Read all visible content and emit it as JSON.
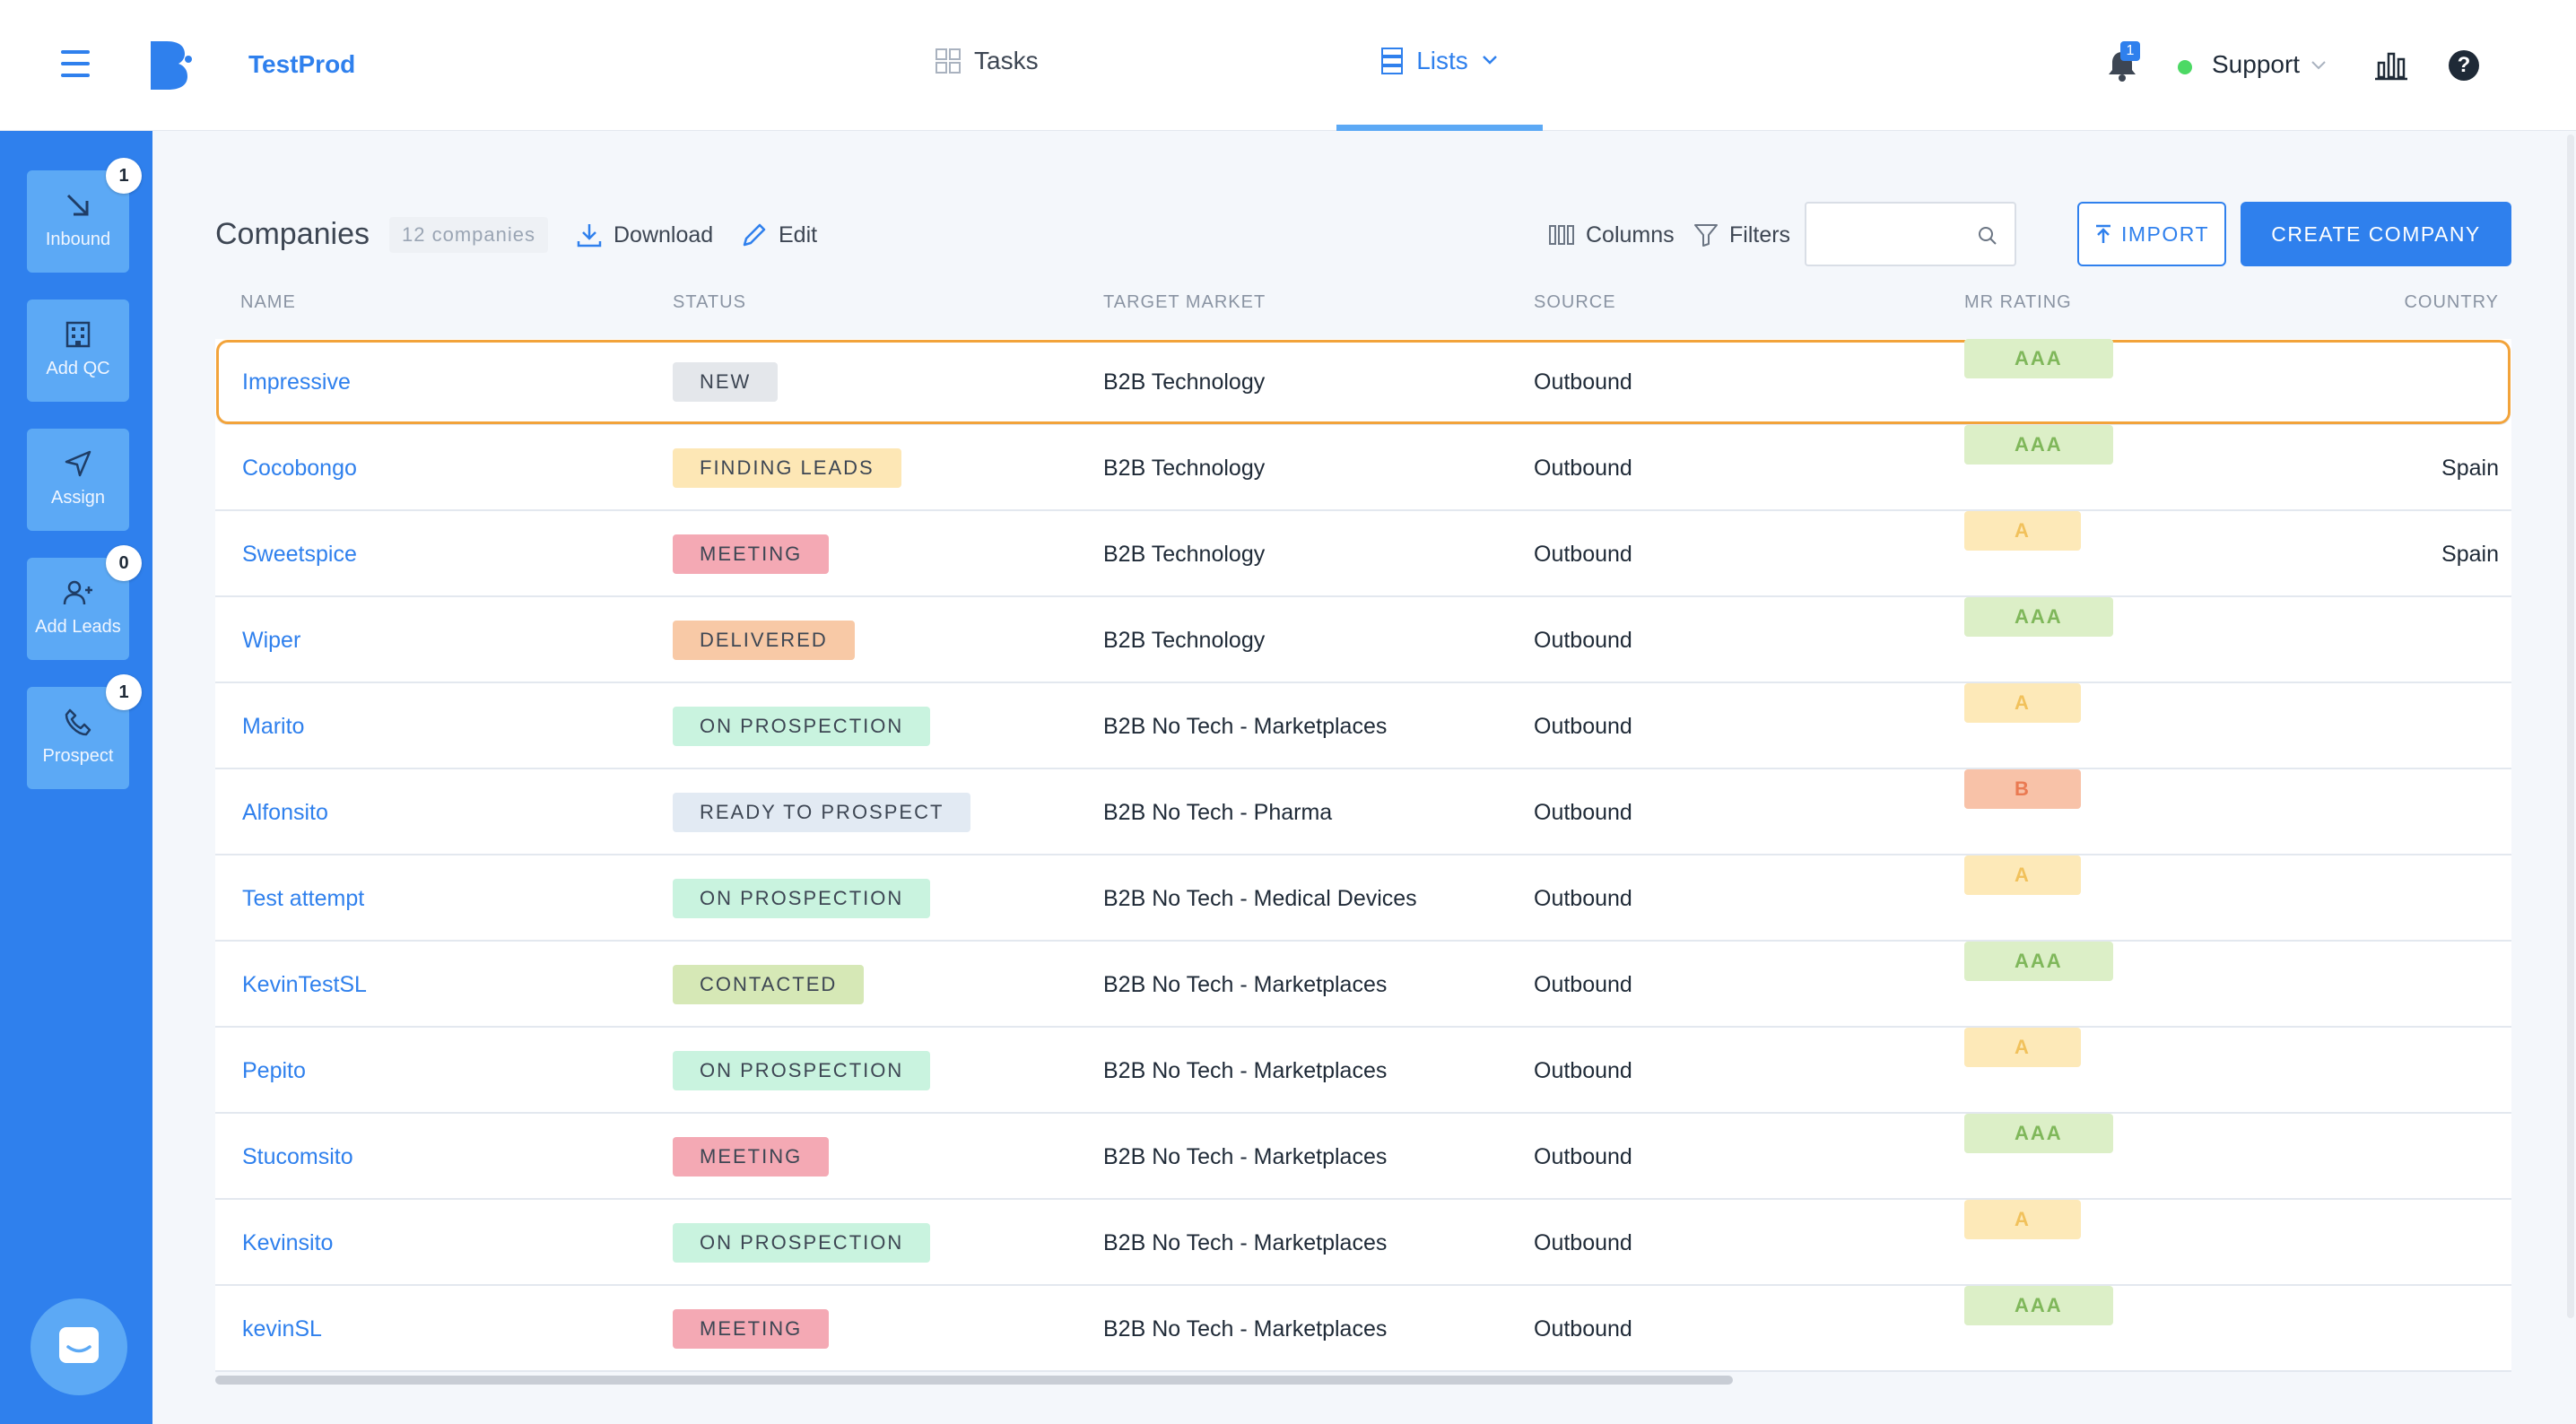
{
  "header": {
    "brand": "TestProd",
    "nav": {
      "tasks_label": "Tasks",
      "lists_label": "Lists"
    },
    "notification_count": "1",
    "user_label": "Support",
    "icons": [
      "menu-icon",
      "logo",
      "grid-icon",
      "list-icon",
      "chevron-down-icon",
      "bell-icon",
      "stats-icon",
      "help-icon"
    ]
  },
  "sidebar": {
    "items": [
      {
        "label": "Inbound",
        "badge": "1",
        "icon": "arrow-down-right-icon"
      },
      {
        "label": "Add QC",
        "badge": null,
        "icon": "building-icon"
      },
      {
        "label": "Assign",
        "badge": null,
        "icon": "send-icon"
      },
      {
        "label": "Add Leads",
        "badge": "0",
        "icon": "add-user-icon"
      },
      {
        "label": "Prospect",
        "badge": "1",
        "icon": "phone-icon"
      }
    ],
    "chat_icon": "chat-icon"
  },
  "main": {
    "title": "Companies",
    "count": "12 companies",
    "download_label": "Download",
    "edit_label": "Edit",
    "columns_label": "Columns",
    "filters_label": "Filters",
    "search_value": "",
    "import_label": "IMPORT",
    "create_label": "CREATE COMPANY"
  },
  "table": {
    "headers": {
      "name": "NAME",
      "status": "STATUS",
      "market": "TARGET MARKET",
      "source": "SOURCE",
      "rating": "MR RATING",
      "country": "COUNTRY"
    },
    "rows": [
      {
        "name": "Impressive",
        "status": "NEW",
        "market": "B2B Technology",
        "source": "Outbound",
        "rating": "AAA",
        "country": ""
      },
      {
        "name": "Cocobongo",
        "status": "FINDING LEADS",
        "market": "B2B Technology",
        "source": "Outbound",
        "rating": "AAA",
        "country": "Spain"
      },
      {
        "name": "Sweetspice",
        "status": "MEETING",
        "market": "B2B Technology",
        "source": "Outbound",
        "rating": "A",
        "country": "Spain"
      },
      {
        "name": "Wiper",
        "status": "DELIVERED",
        "market": "B2B Technology",
        "source": "Outbound",
        "rating": "AAA",
        "country": ""
      },
      {
        "name": "Marito",
        "status": "ON PROSPECTION",
        "market": "B2B No Tech - Marketplaces",
        "source": "Outbound",
        "rating": "A",
        "country": ""
      },
      {
        "name": "Alfonsito",
        "status": "READY TO PROSPECT",
        "market": "B2B No Tech - Pharma",
        "source": "Outbound",
        "rating": "B",
        "country": ""
      },
      {
        "name": "Test attempt",
        "status": "ON PROSPECTION",
        "market": "B2B No Tech - Medical Devices",
        "source": "Outbound",
        "rating": "A",
        "country": ""
      },
      {
        "name": "KevinTestSL",
        "status": "CONTACTED",
        "market": "B2B No Tech - Marketplaces",
        "source": "Outbound",
        "rating": "AAA",
        "country": ""
      },
      {
        "name": "Pepito",
        "status": "ON PROSPECTION",
        "market": "B2B No Tech - Marketplaces",
        "source": "Outbound",
        "rating": "A",
        "country": ""
      },
      {
        "name": "Stucomsito",
        "status": "MEETING",
        "market": "B2B No Tech - Marketplaces",
        "source": "Outbound",
        "rating": "AAA",
        "country": ""
      },
      {
        "name": "Kevinsito",
        "status": "ON PROSPECTION",
        "market": "B2B No Tech - Marketplaces",
        "source": "Outbound",
        "rating": "A",
        "country": ""
      },
      {
        "name": "kevinSL",
        "status": "MEETING",
        "market": "B2B No Tech - Marketplaces",
        "source": "Outbound",
        "rating": "AAA",
        "country": ""
      }
    ],
    "selected_row": "Impressive"
  },
  "colors": {
    "accent": "#2f80ed",
    "sidebar_button": "#5ca9f5",
    "selection_outline": "#f2a33a",
    "status": {
      "NEW": "#e4e7eb",
      "FINDING LEADS": "#fde7b5",
      "MEETING": "#f4a9b4",
      "DELIVERED": "#f8c9a6",
      "ON PROSPECTION": "#c9f3df",
      "READY TO PROSPECT": "#e2eaf3",
      "CONTACTED": "#d6e8b6"
    },
    "rating_bg": {
      "AAA": "#dcefc7",
      "A": "#fde9b8",
      "B": "#f8c2a8"
    },
    "rating_fg": {
      "AAA": "#7fb75a",
      "A": "#f1c15b",
      "B": "#ea7a52"
    }
  }
}
